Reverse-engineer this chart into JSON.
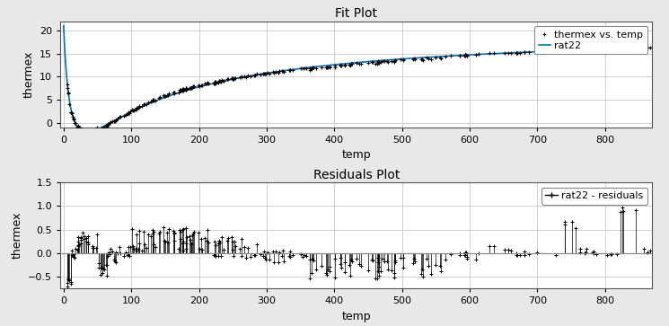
{
  "title_fit": "Fit Plot",
  "title_residuals": "Residuals Plot",
  "xlabel": "temp",
  "ylabel": "thermex",
  "xlim_fit": [
    -5,
    870
  ],
  "ylim_fit": [
    -1,
    22
  ],
  "xlim_res": [
    -5,
    870
  ],
  "ylim_res": [
    -0.75,
    1.5
  ],
  "xticks_fit": [
    0,
    100,
    200,
    300,
    400,
    500,
    600,
    700,
    800
  ],
  "yticks_fit": [
    0,
    5,
    10,
    15,
    20
  ],
  "xticks_res": [
    0,
    100,
    200,
    300,
    400,
    500,
    600,
    700,
    800
  ],
  "yticks_res": [
    -0.5,
    0.0,
    0.5,
    1.0,
    1.5
  ],
  "fit_color": "#0072BD",
  "data_color": "black",
  "legend_fit": [
    "thermex vs. temp",
    "rat22"
  ],
  "legend_res": "rat22 - residuals",
  "bg_color": "#E8E8E8",
  "axes_bg_color": "#FFFFFF",
  "grid_color": "#C8C8C8"
}
